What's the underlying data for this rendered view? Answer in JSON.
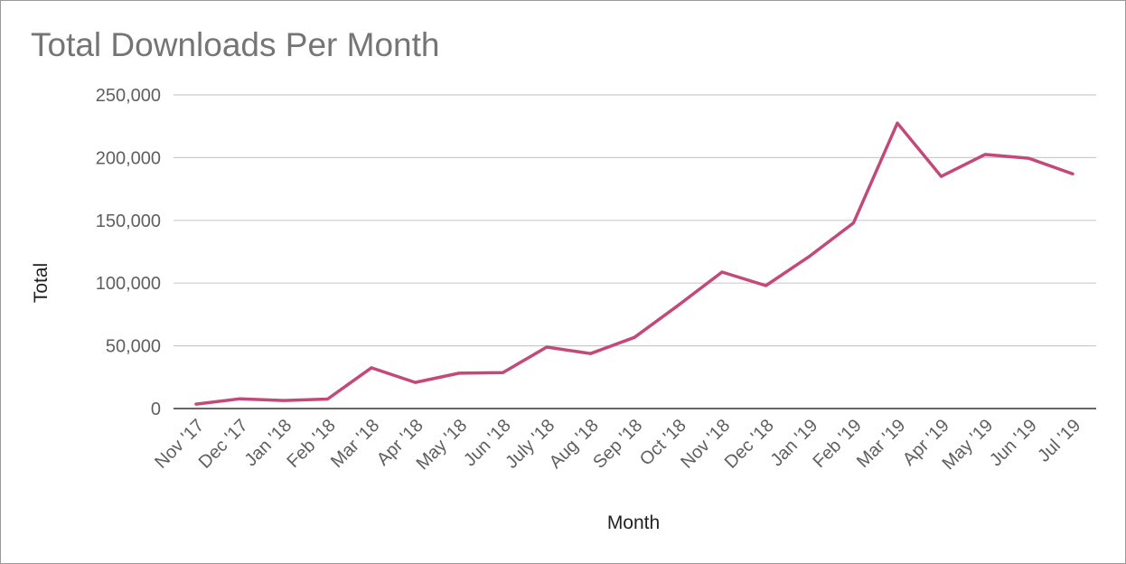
{
  "chart_data": {
    "type": "line",
    "title": "Total Downloads Per Month",
    "xlabel": "Month",
    "ylabel": "Total",
    "ylim": [
      0,
      250000
    ],
    "yticks": [
      0,
      50000,
      100000,
      150000,
      200000,
      250000
    ],
    "ytick_labels": [
      "0",
      "50,000",
      "100,000",
      "150,000",
      "200,000",
      "250,000"
    ],
    "grid": true,
    "legend": "none",
    "categories": [
      "Nov '17",
      "Dec '17",
      "Jan '18",
      "Feb '18",
      "Mar '18",
      "Apr '18",
      "May '18",
      "Jun '18",
      "July '18",
      "Aug '18",
      "Sep '18",
      "Oct '18",
      "Nov '18",
      "Dec '18",
      "Jan '19",
      "Feb '19",
      "Mar '19",
      "Apr '19",
      "May '19",
      "Jun '19",
      "Jul '19"
    ],
    "series": [
      {
        "color": "#c2497a",
        "values": [
          3500,
          7800,
          6400,
          7600,
          32500,
          20800,
          28200,
          28600,
          49000,
          43800,
          56700,
          82300,
          108800,
          98000,
          121500,
          148000,
          227500,
          185000,
          202500,
          199500,
          187000
        ]
      }
    ],
    "colors": {
      "line": "#c2497a",
      "grid": "#cccccc",
      "baseline": "#333333",
      "title": "#757575",
      "tick_text": "#5f5f5f"
    }
  }
}
